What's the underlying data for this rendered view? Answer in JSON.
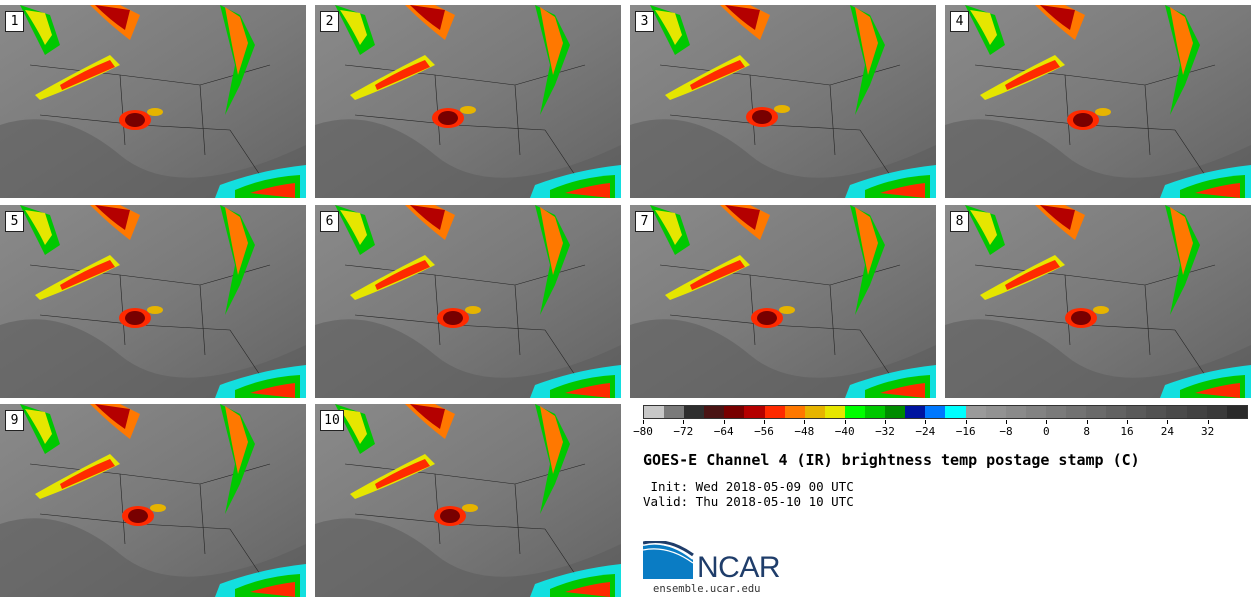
{
  "figure": {
    "title": "GOES-E Channel 4 (IR) brightness temp postage stamp (C)",
    "init_text": " Init: Wed 2018-05-09 00 UTC",
    "valid_text": "Valid: Thu 2018-05-10 10 UTC"
  },
  "panels": [
    {
      "label": "1"
    },
    {
      "label": "2"
    },
    {
      "label": "3"
    },
    {
      "label": "4"
    },
    {
      "label": "5"
    },
    {
      "label": "6"
    },
    {
      "label": "7"
    },
    {
      "label": "8"
    },
    {
      "label": "9"
    },
    {
      "label": "10"
    }
  ],
  "colorbar": {
    "colors": [
      "#c8c8c8",
      "#7a7a7a",
      "#2e2e2e",
      "#4a1414",
      "#780000",
      "#b40000",
      "#ff2a00",
      "#ff7800",
      "#e6b400",
      "#e6e600",
      "#00ff00",
      "#00c800",
      "#008c00",
      "#0014a0",
      "#0078ff",
      "#00ffff",
      "#9a9a9a",
      "#929292",
      "#8a8a8a",
      "#828282",
      "#7a7a7a",
      "#727272",
      "#6a6a6a",
      "#626262",
      "#5a5a5a",
      "#525252",
      "#4a4a4a",
      "#424242",
      "#3a3a3a",
      "#2a2a2a"
    ],
    "tick_labels": [
      "−80",
      "−72",
      "−64",
      "−56",
      "−48",
      "−40",
      "−32",
      "−24",
      "−16",
      "−8",
      "0",
      "8",
      "16",
      "24",
      "32"
    ]
  },
  "logo": {
    "name": "NCAR",
    "url": "ensemble.ucar.edu"
  }
}
